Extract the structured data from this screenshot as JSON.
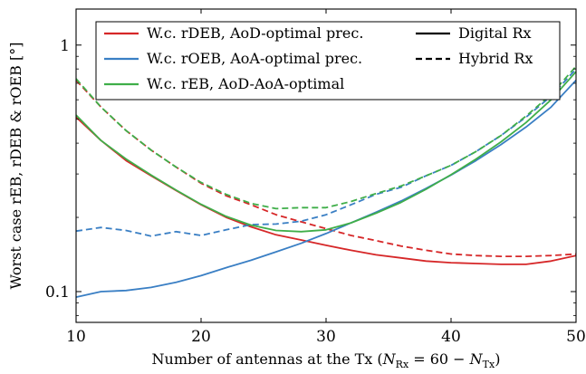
{
  "chart_data": {
    "type": "line",
    "xlabel": "Number of antennas at the Tx (",
    "xlabel_math": {
      "n_rx": "N",
      "rx_sub": "Rx",
      "eq": " = 60 − ",
      "n_tx": "N",
      "tx_sub": "Tx",
      "close": ")"
    },
    "ylabel": "Worst case rEB, rDEB & rOEB [°]",
    "xlim": [
      10,
      50
    ],
    "ylim": [
      0.075,
      1.4
    ],
    "y_scale": "log",
    "x_ticks": [
      10,
      20,
      30,
      40,
      50
    ],
    "x_tick_labels": [
      "10",
      "20",
      "30",
      "40",
      "50"
    ],
    "y_ticks": [
      0.1,
      1
    ],
    "y_tick_labels": [
      "0.1",
      "1"
    ],
    "grid": false,
    "legend_position": "top",
    "legend": [
      {
        "label": "W.c. rDEB, AoD-optimal prec.",
        "color": "#d62728",
        "style": "solid"
      },
      {
        "label": "W.c. rOEB, AoA-optimal prec.",
        "color": "#3a7fc4",
        "style": "solid"
      },
      {
        "label": "W.c. rEB, AoD-AoA-optimal",
        "color": "#3fae49",
        "style": "solid"
      },
      {
        "label": "Digital Rx",
        "color": "#000000",
        "style": "solid"
      },
      {
        "label": "Hybrid Rx",
        "color": "#000000",
        "style": "dashed"
      }
    ],
    "x": [
      10,
      12,
      14,
      16,
      18,
      20,
      22,
      24,
      26,
      28,
      30,
      32,
      34,
      36,
      38,
      40,
      42,
      44,
      46,
      48,
      50
    ],
    "series": [
      {
        "name": "W.c. rDEB, AoD-optimal prec. (Digital Rx)",
        "color": "#d62728",
        "dash": false,
        "values": [
          0.51,
          0.41,
          0.34,
          0.295,
          0.257,
          0.225,
          0.2,
          0.183,
          0.17,
          0.162,
          0.154,
          0.147,
          0.141,
          0.137,
          0.133,
          0.131,
          0.13,
          0.129,
          0.129,
          0.133,
          0.14
        ]
      },
      {
        "name": "W.c. rDEB, AoD-optimal prec. (Hybrid Rx)",
        "color": "#d62728",
        "dash": true,
        "values": [
          0.72,
          0.56,
          0.45,
          0.375,
          0.32,
          0.275,
          0.245,
          0.225,
          0.205,
          0.192,
          0.18,
          0.169,
          0.161,
          0.153,
          0.147,
          0.142,
          0.14,
          0.139,
          0.139,
          0.14,
          0.142
        ]
      },
      {
        "name": "W.c. rOEB, AoA-optimal prec. (Digital Rx)",
        "color": "#3a7fc4",
        "dash": false,
        "values": [
          0.095,
          0.1,
          0.101,
          0.104,
          0.109,
          0.116,
          0.125,
          0.134,
          0.145,
          0.157,
          0.172,
          0.19,
          0.21,
          0.233,
          0.262,
          0.297,
          0.34,
          0.395,
          0.465,
          0.56,
          0.72
        ]
      },
      {
        "name": "W.c. rOEB, AoA-optimal prec. (Hybrid Rx)",
        "color": "#3a7fc4",
        "dash": true,
        "values": [
          0.176,
          0.182,
          0.177,
          0.168,
          0.175,
          0.169,
          0.178,
          0.187,
          0.188,
          0.193,
          0.205,
          0.225,
          0.248,
          0.265,
          0.295,
          0.325,
          0.37,
          0.43,
          0.51,
          0.62,
          0.8
        ]
      },
      {
        "name": "W.c. rEB, AoD-AoA-optimal (Digital Rx)",
        "color": "#3fae49",
        "dash": false,
        "values": [
          0.52,
          0.41,
          0.345,
          0.297,
          0.258,
          0.226,
          0.202,
          0.186,
          0.177,
          0.175,
          0.178,
          0.19,
          0.208,
          0.23,
          0.26,
          0.298,
          0.345,
          0.405,
          0.485,
          0.6,
          0.78
        ]
      },
      {
        "name": "W.c. rEB, AoD-AoA-optimal (Hybrid Rx)",
        "color": "#3fae49",
        "dash": true,
        "values": [
          0.73,
          0.56,
          0.45,
          0.375,
          0.32,
          0.277,
          0.248,
          0.228,
          0.217,
          0.219,
          0.219,
          0.232,
          0.25,
          0.268,
          0.295,
          0.325,
          0.37,
          0.43,
          0.515,
          0.63,
          0.82
        ]
      }
    ]
  }
}
